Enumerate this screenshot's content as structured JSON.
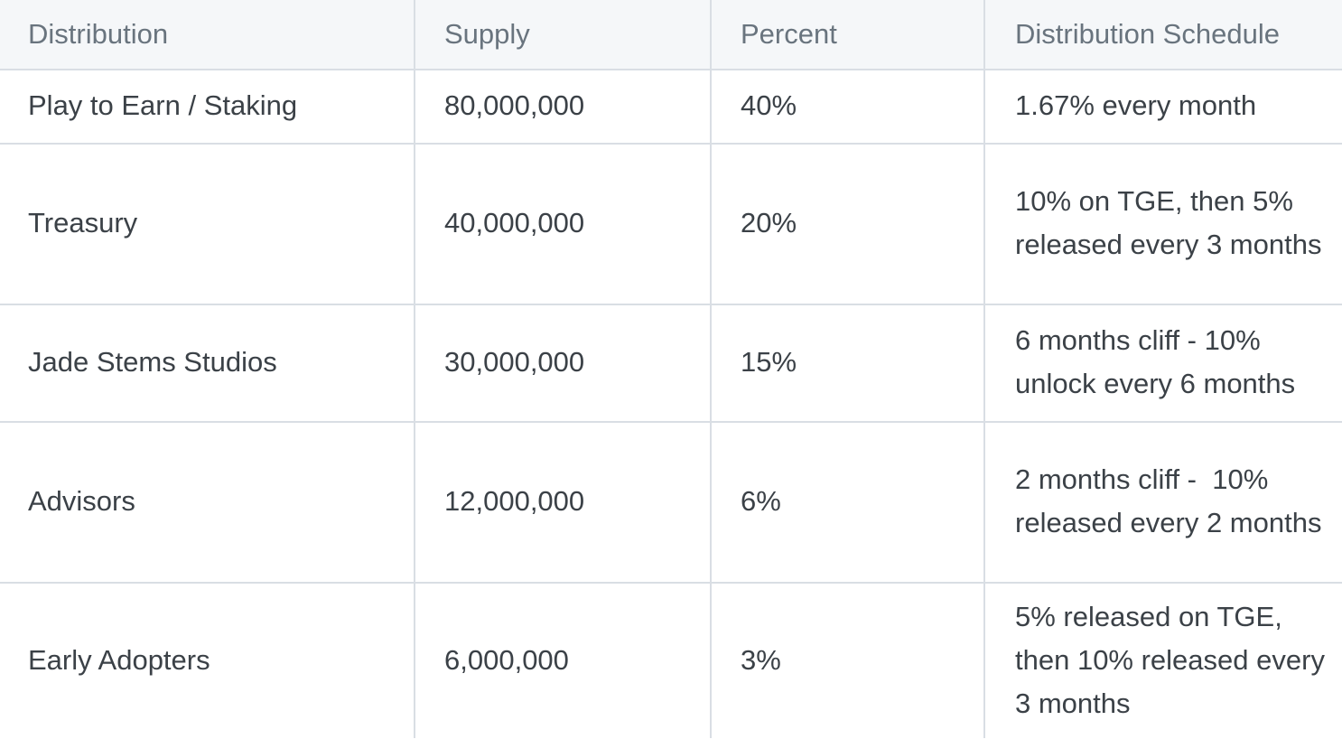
{
  "table": {
    "headers": [
      "Distribution",
      "Supply",
      "Percent",
      "Distribution Schedule"
    ],
    "rows": [
      {
        "distribution": "Play to Earn / Staking",
        "supply": "80,000,000",
        "percent": "40%",
        "schedule": "1.67% every month"
      },
      {
        "distribution": "Treasury",
        "supply": "40,000,000",
        "percent": "20%",
        "schedule": "10% on TGE, then 5% released every 3 months"
      },
      {
        "distribution": "Jade Stems Studios",
        "supply": "30,000,000",
        "percent": "15%",
        "schedule": "6 months cliff - 10% unlock every 6 months"
      },
      {
        "distribution": "Advisors",
        "supply": "12,000,000",
        "percent": "6%",
        "schedule": "2 months cliff -  10% released every 2 months"
      },
      {
        "distribution": "Early Adopters",
        "supply": "6,000,000",
        "percent": "3%",
        "schedule": "5% released on TGE, then 10% released every 3 months"
      }
    ]
  }
}
